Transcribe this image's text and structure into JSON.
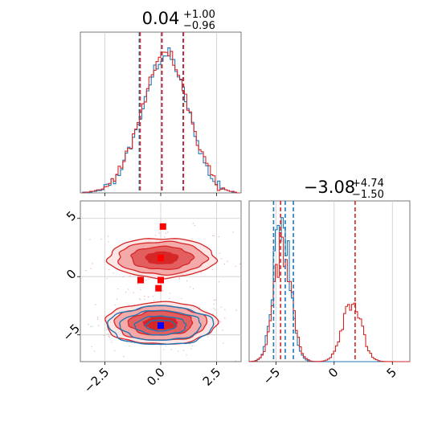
{
  "chart_data": [
    {
      "type": "histogram",
      "panel": "marginal-x",
      "title": {
        "value": "0.04",
        "plus": "+1.00",
        "minus": "−0.96"
      },
      "xlim": [
        -3.6,
        3.6
      ],
      "grid": true,
      "series": [
        {
          "color": "#1f77b4",
          "bins": [
            -3.5,
            3.5
          ],
          "counts": [
            1,
            1,
            0,
            1,
            2,
            2,
            3,
            3,
            4,
            6,
            8,
            12,
            14,
            16,
            22,
            26,
            34,
            38,
            46,
            54,
            62,
            72,
            78,
            90,
            98,
            110,
            118,
            126,
            140,
            150,
            160,
            164,
            170,
            172,
            178,
            176,
            180,
            172,
            168,
            160,
            150,
            140,
            132,
            120,
            108,
            98,
            88,
            78,
            66,
            56,
            48,
            40,
            32,
            26,
            20,
            16,
            12,
            9,
            7,
            5,
            4,
            3,
            2,
            1,
            1,
            0
          ],
          "quantiles": [
            -0.96,
            0.04,
            1.0
          ]
        },
        {
          "color": "#d62728",
          "counts": [
            0,
            1,
            1,
            2,
            2,
            3,
            4,
            4,
            5,
            7,
            9,
            12,
            16,
            18,
            24,
            28,
            36,
            40,
            48,
            56,
            64,
            74,
            80,
            92,
            100,
            112,
            120,
            130,
            142,
            152,
            162,
            168,
            172,
            176,
            180,
            178,
            182,
            176,
            170,
            162,
            152,
            142,
            134,
            122,
            110,
            100,
            90,
            80,
            68,
            58,
            50,
            42,
            34,
            28,
            22,
            17,
            13,
            10,
            8,
            6,
            4,
            3,
            2,
            2,
            1,
            0
          ],
          "quantiles": [
            -0.92,
            0.06,
            1.02
          ]
        }
      ]
    },
    {
      "type": "contour",
      "panel": "joint",
      "xlim": [
        -3.6,
        3.6
      ],
      "ylim": [
        -7.3,
        6.5
      ],
      "xticks": [
        "−2.5",
        "0.0",
        "2.5"
      ],
      "yticks": [
        "5",
        "0",
        "−5"
      ],
      "blue_blob": {
        "cx": 0.0,
        "cy": -4.2,
        "sx": 1.15,
        "sy": 0.85
      },
      "red_blobs": [
        {
          "cx": 0.05,
          "cy": 1.6,
          "sx": 1.2,
          "sy": 0.85
        },
        {
          "cx": 0.0,
          "cy": -4.0,
          "sx": 1.25,
          "sy": 0.9
        }
      ],
      "red_markers": [
        {
          "x": 0.1,
          "y": 4.3
        },
        {
          "x": 0.0,
          "y": 1.6
        },
        {
          "x": -0.9,
          "y": -0.3
        },
        {
          "x": 0.0,
          "y": -0.3
        },
        {
          "x": -0.1,
          "y": -1.0
        }
      ],
      "blue_marker": {
        "x": 0.0,
        "y": -4.2
      }
    },
    {
      "type": "histogram",
      "panel": "marginal-y",
      "title": {
        "value": "−3.08",
        "plus": "+4.74",
        "minus": "−1.50"
      },
      "xlim": [
        -7.3,
        6.5
      ],
      "xticks": [
        "−5",
        "0",
        "5"
      ],
      "grid": true,
      "blue_quantiles": [
        -5.2,
        -4.2,
        -3.5
      ],
      "red_quantiles": [
        -4.6,
        1.8
      ]
    }
  ]
}
